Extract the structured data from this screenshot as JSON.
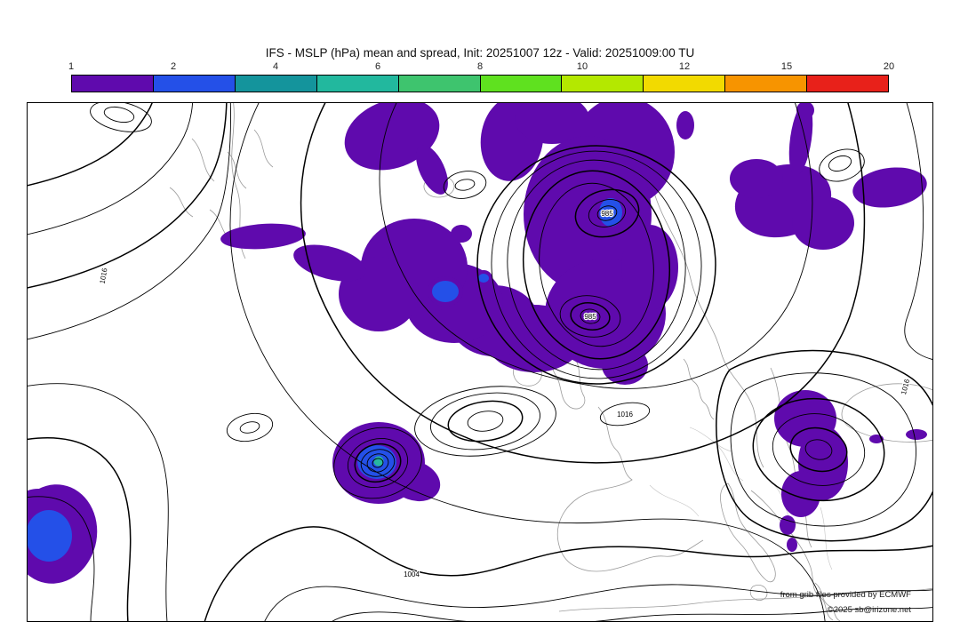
{
  "title": "IFS - MSLP (hPa) mean and spread, Init: 20251007 12z - Valid: 20251009:00 TU",
  "colorbar": {
    "tick_labels": [
      "1",
      "2",
      "4",
      "6",
      "8",
      "10",
      "12",
      "15",
      "20"
    ],
    "segment_colors": [
      "#5f0aad",
      "#2450e8",
      "#14949c",
      "#22b89e",
      "#3ec46e",
      "#5fe11f",
      "#b4e800",
      "#f2da00",
      "#f79400",
      "#e8211a"
    ]
  },
  "map": {
    "fill_colors": {
      "spread_1": "#5f0aad",
      "spread_2": "#2450e8",
      "spread_4": "#28b8a0"
    },
    "contour_labels": [
      {
        "text": "985"
      },
      {
        "text": "985"
      },
      {
        "text": "1016"
      },
      {
        "text": "1004"
      },
      {
        "text": "1016"
      },
      {
        "text": "1016"
      }
    ]
  },
  "attribution": {
    "line1": "from grib files provided by ECMWF",
    "line2": "©2025 sb@irizone.net"
  }
}
